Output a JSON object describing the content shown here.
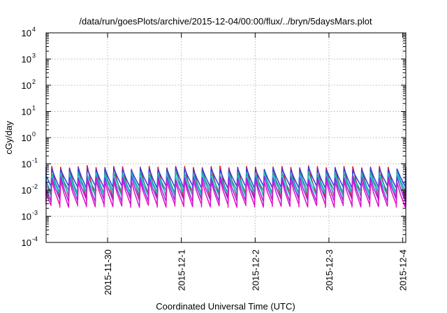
{
  "chart_data": {
    "type": "line",
    "title": "/data/run/goesPlots/archive/2015-12-04/00:00/flux/../bryn/5daysMars.plot",
    "xlabel": "Coordinated Universal Time (UTC)",
    "ylabel": "cGy/day",
    "yscale": "log",
    "ylim": [
      0.0001,
      10000
    ],
    "xlim": [
      "2015-11-29T04:00",
      "2015-12-04T01:00"
    ],
    "grid": true,
    "legend": "none",
    "x_ticks": [
      {
        "x": "2015-11-30",
        "label": "2015-11-30"
      },
      {
        "x": "2015-12-01",
        "label": "2015-12-1"
      },
      {
        "x": "2015-12-02",
        "label": "2015-12-2"
      },
      {
        "x": "2015-12-03",
        "label": "2015-12-3"
      },
      {
        "x": "2015-12-04",
        "label": "2015-12-4"
      }
    ],
    "y_ticks": [
      {
        "y": 0.0001,
        "base": "10",
        "exp": "-4"
      },
      {
        "y": 0.001,
        "base": "10",
        "exp": "-3"
      },
      {
        "y": 0.01,
        "base": "10",
        "exp": "-2"
      },
      {
        "y": 0.1,
        "base": "10",
        "exp": "-1"
      },
      {
        "y": 1,
        "base": "10",
        "exp": "0"
      },
      {
        "y": 10,
        "base": "10",
        "exp": "1"
      },
      {
        "y": 100,
        "base": "10",
        "exp": "2"
      },
      {
        "y": 1000,
        "base": "10",
        "exp": "3"
      },
      {
        "y": 10000,
        "base": "10",
        "exp": "4"
      }
    ],
    "cycle_hours": 2.88,
    "series_pattern": "sawtooth: sharp rise to peak then decay to trough in each cycle",
    "series": [
      {
        "color": "#e8102a",
        "peak": 0.075,
        "trough": 0.0055
      },
      {
        "color": "#2a3fe0",
        "peak": 0.065,
        "trough": 0.013
      },
      {
        "color": "#1aa7a7",
        "peak": 0.045,
        "trough": 0.0085
      },
      {
        "color": "#18c6c6",
        "peak": 0.035,
        "trough": 0.0065
      },
      {
        "color": "#8a2be2",
        "peak": 0.03,
        "trough": 0.004
      },
      {
        "color": "#e010c8",
        "peak": 0.022,
        "trough": 0.0025
      }
    ]
  }
}
